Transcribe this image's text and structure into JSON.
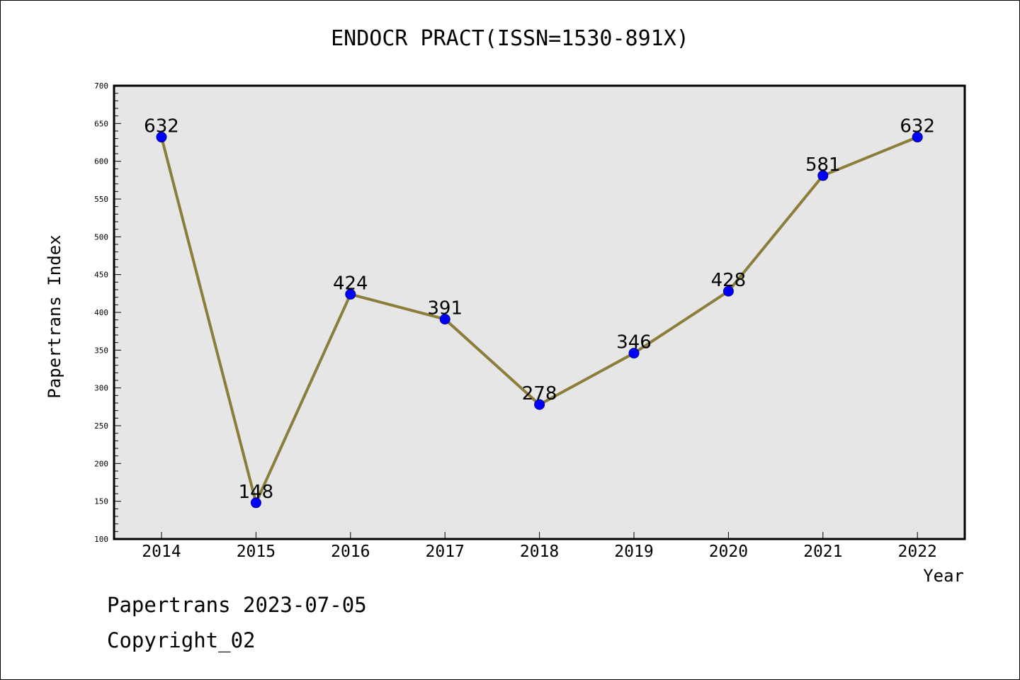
{
  "chart_data": {
    "type": "line",
    "title": "ENDOCR PRACT(ISSN=1530-891X)",
    "xlabel": "Year",
    "ylabel": "Papertrans Index",
    "categories": [
      "2014",
      "2015",
      "2016",
      "2017",
      "2018",
      "2019",
      "2020",
      "2021",
      "2022"
    ],
    "series": [
      {
        "values": [
          632,
          148,
          424,
          391,
          278,
          346,
          428,
          581,
          632
        ],
        "data_labels": [
          "632",
          "148",
          "424",
          "391",
          "278",
          "346",
          "428",
          "581",
          "632"
        ]
      }
    ],
    "ylim": [
      100,
      700
    ],
    "yticks": [
      100,
      150,
      200,
      250,
      300,
      350,
      400,
      450,
      500,
      550,
      600,
      650,
      700
    ],
    "grid": false,
    "colors": {
      "line": "#8B7D3A",
      "marker": "#0000FF",
      "plot_background": "#E6E6E6"
    }
  },
  "footer": {
    "date_text": "Papertrans 2023-07-05",
    "copyright_text": "Copyright_02"
  }
}
